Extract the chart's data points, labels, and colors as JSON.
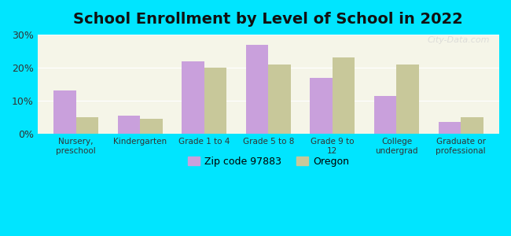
{
  "title": "School Enrollment by Level of School in 2022",
  "categories": [
    "Nursery,\npreschool",
    "Kindergarten",
    "Grade 1 to 4",
    "Grade 5 to 8",
    "Grade 9 to\n12",
    "College\nundergrad",
    "Graduate or\nprofessional"
  ],
  "zip_values": [
    13.0,
    5.5,
    22.0,
    27.0,
    17.0,
    11.5,
    3.5
  ],
  "oregon_values": [
    5.0,
    4.5,
    20.0,
    21.0,
    23.0,
    21.0,
    5.0
  ],
  "zip_color": "#c9a0dc",
  "oregon_color": "#c8c89a",
  "background_outer": "#00e5ff",
  "background_inner": "#f5f5e8",
  "ylim": [
    0,
    30
  ],
  "yticks": [
    0,
    10,
    20,
    30
  ],
  "ytick_labels": [
    "0%",
    "10%",
    "20%",
    "30%"
  ],
  "zip_label": "Zip code 97883",
  "oregon_label": "Oregon",
  "bar_width": 0.35,
  "title_fontsize": 14,
  "watermark": "City-Data.com"
}
